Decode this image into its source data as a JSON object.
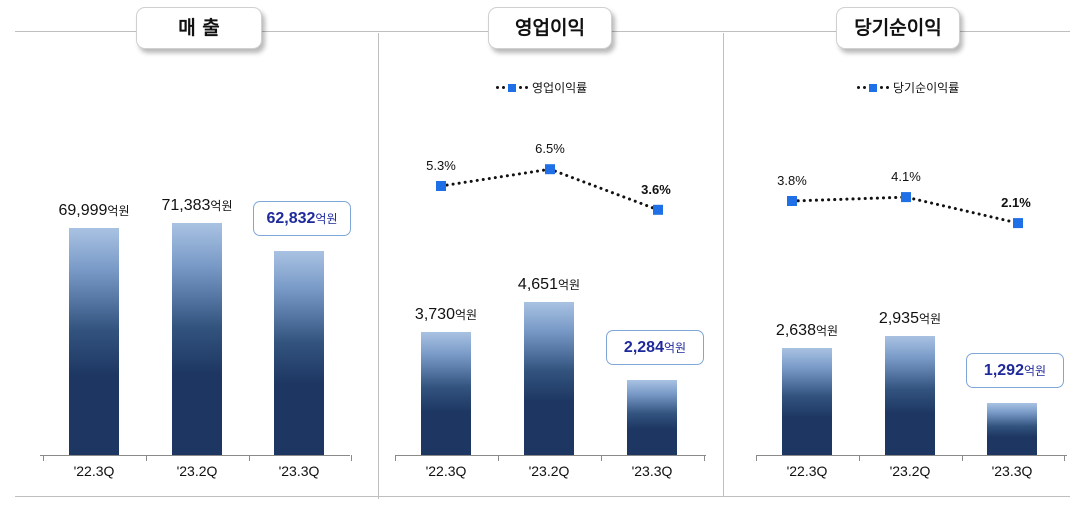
{
  "panels": [
    {
      "title": "매 출",
      "unit": "억원",
      "categories": [
        "'22.3Q",
        "'23.2Q",
        "'23.3Q"
      ],
      "values": [
        69999,
        71383,
        62832
      ],
      "value_labels": [
        "69,999",
        "71,383",
        "62,832"
      ],
      "highlight_index": 2
    },
    {
      "title": "영업이익",
      "unit": "억원",
      "categories": [
        "'22.3Q",
        "'23.2Q",
        "'23.3Q"
      ],
      "values": [
        3730,
        4651,
        2284
      ],
      "value_labels": [
        "3,730",
        "4,651",
        "2,284"
      ],
      "highlight_index": 2,
      "rate_legend": "영업이익률",
      "rates": [
        5.3,
        6.5,
        3.6
      ],
      "rate_labels": [
        "5.3%",
        "6.5%",
        "3.6%"
      ]
    },
    {
      "title": "당기순이익",
      "unit": "억원",
      "categories": [
        "'22.3Q",
        "'23.2Q",
        "'23.3Q"
      ],
      "values": [
        2638,
        2935,
        1292
      ],
      "value_labels": [
        "2,638",
        "2,935",
        "1,292"
      ],
      "highlight_index": 2,
      "rate_legend": "당기순이익률",
      "rates": [
        3.8,
        4.1,
        2.1
      ],
      "rate_labels": [
        "3.8%",
        "4.1%",
        "2.1%"
      ]
    }
  ],
  "chart_data": [
    {
      "type": "bar",
      "title": "매 출",
      "categories": [
        "'22.3Q",
        "'23.2Q",
        "'23.3Q"
      ],
      "series": [
        {
          "values": [
            69999,
            71383,
            62832
          ]
        }
      ]
    },
    {
      "type": "bar",
      "title": "영업이익",
      "categories": [
        "'22.3Q",
        "'23.2Q",
        "'23.3Q"
      ],
      "series": [
        {
          "values": [
            3730,
            4651,
            2284
          ]
        },
        {
          "name": "영업이익률",
          "type": "line",
          "values": [
            5.3,
            6.5,
            3.6
          ]
        }
      ]
    },
    {
      "type": "bar",
      "title": "당기순이익",
      "categories": [
        "'22.3Q",
        "'23.2Q",
        "'23.3Q"
      ],
      "series": [
        {
          "values": [
            2638,
            2935,
            1292
          ]
        },
        {
          "name": "당기순이익률",
          "type": "line",
          "values": [
            3.8,
            4.1,
            2.1
          ]
        }
      ]
    }
  ],
  "colors": {
    "bar_dark": "#1d3762",
    "bar_light": "#a9c2e2",
    "marker": "#1f6fe6",
    "highlight_text": "#1f2a9a",
    "highlight_border": "#7fa6d8"
  }
}
